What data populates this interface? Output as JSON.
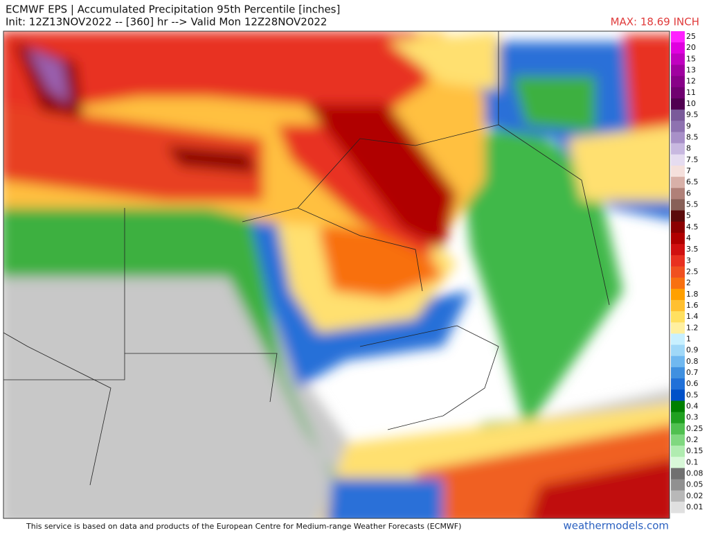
{
  "header": {
    "title": "ECMWF EPS | Accumulated Precipitation 95th Percentile [inches]",
    "subtitle": "Init: 12Z13NOV2022 -- [360] hr --> Valid Mon 12Z28NOV2022",
    "max_label": "MAX: 18.69 INCH"
  },
  "colorbar": [
    {
      "label": "25",
      "color": "#ff20ff"
    },
    {
      "label": "20",
      "color": "#e000e0"
    },
    {
      "label": "15",
      "color": "#c000c0"
    },
    {
      "label": "13",
      "color": "#a000a0"
    },
    {
      "label": "12",
      "color": "#880088"
    },
    {
      "label": "11",
      "color": "#700070"
    },
    {
      "label": "10",
      "color": "#500050"
    },
    {
      "label": "9.5",
      "color": "#7a5a9a"
    },
    {
      "label": "9",
      "color": "#8e72b0"
    },
    {
      "label": "8.5",
      "color": "#a890c8"
    },
    {
      "label": "8",
      "color": "#c8b8e0"
    },
    {
      "label": "7.5",
      "color": "#e6dcf0"
    },
    {
      "label": "7",
      "color": "#f5e0dc"
    },
    {
      "label": "6.5",
      "color": "#d8b0a8"
    },
    {
      "label": "6",
      "color": "#b08078"
    },
    {
      "label": "5.5",
      "color": "#886058"
    },
    {
      "label": "5",
      "color": "#5a0a0a"
    },
    {
      "label": "4.5",
      "color": "#8b0000"
    },
    {
      "label": "4",
      "color": "#b00000"
    },
    {
      "label": "3.5",
      "color": "#d01010"
    },
    {
      "label": "3",
      "color": "#e83020"
    },
    {
      "label": "2.5",
      "color": "#f05020"
    },
    {
      "label": "2",
      "color": "#f87010"
    },
    {
      "label": "1.8",
      "color": "#ffa000"
    },
    {
      "label": "1.6",
      "color": "#ffc030"
    },
    {
      "label": "1.4",
      "color": "#ffe060"
    },
    {
      "label": "1.2",
      "color": "#fff0a0"
    },
    {
      "label": "1",
      "color": "#c8f0ff"
    },
    {
      "label": "0.9",
      "color": "#a0d8f8"
    },
    {
      "label": "0.8",
      "color": "#70b8f0"
    },
    {
      "label": "0.7",
      "color": "#4090e0"
    },
    {
      "label": "0.6",
      "color": "#2070d8"
    },
    {
      "label": "0.5",
      "color": "#0050c8"
    },
    {
      "label": "0.4",
      "color": "#008000"
    },
    {
      "label": "0.3",
      "color": "#20a020"
    },
    {
      "label": "0.25",
      "color": "#50c050"
    },
    {
      "label": "0.2",
      "color": "#80d880"
    },
    {
      "label": "0.15",
      "color": "#b0ecb0"
    },
    {
      "label": "0.1",
      "color": "#d8f8d8"
    },
    {
      "label": "0.08",
      "color": "#707070"
    },
    {
      "label": "0.05",
      "color": "#909090"
    },
    {
      "label": "0.02",
      "color": "#b8b8b8"
    },
    {
      "label": "0.01",
      "color": "#e0e0e0"
    }
  ],
  "footer": {
    "credit": "This service is based on data and products of the European Centre for Medium-range Weather Forecasts (ECMWF)",
    "watermark": "weathermodels.com"
  }
}
